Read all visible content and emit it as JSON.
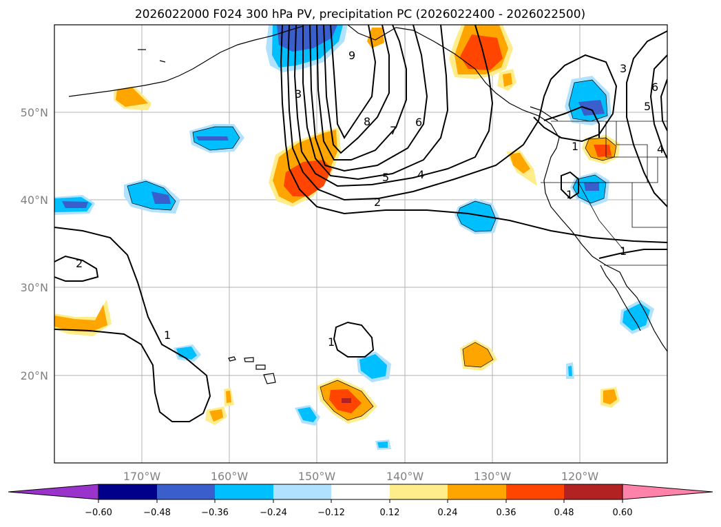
{
  "title": "2026022000 F024 300 hPa PV, precipitation PC (2026022400 - 2026022500)",
  "lat_labels": [
    "50°N",
    "40°N",
    "30°N",
    "20°N"
  ],
  "lon_labels": [
    "170°W",
    "160°W",
    "150°W",
    "140°W",
    "130°W",
    "120°W"
  ],
  "colorbar": {
    "ticks": [
      "−0.60",
      "−0.48",
      "−0.36",
      "−0.24",
      "−0.12",
      "0.12",
      "0.24",
      "0.36",
      "0.48",
      "0.60"
    ],
    "colors": [
      "#9933cc",
      "#00008b",
      "#3a5fcd",
      "#00bfff",
      "#b0e2ff",
      "#ffffff",
      "#ffec8b",
      "#ffa500",
      "#ff4500",
      "#b22222",
      "#ff82ab"
    ]
  },
  "contour_labels": {
    "l9": "9",
    "l3a": "3",
    "l8": "8",
    "l7": "7",
    "l6": "6",
    "l5": "5",
    "l4": "4",
    "l2a": "2",
    "l3b": "3",
    "l6b": "6",
    "l5b": "5",
    "l4b": "4",
    "l1a": "1",
    "l1b": "1",
    "l1c": "1",
    "l2b": "2",
    "l1d": "1",
    "l1e": "1"
  },
  "map": {
    "lon_range": [
      -180,
      -110
    ],
    "lat_range": [
      10,
      60
    ]
  }
}
